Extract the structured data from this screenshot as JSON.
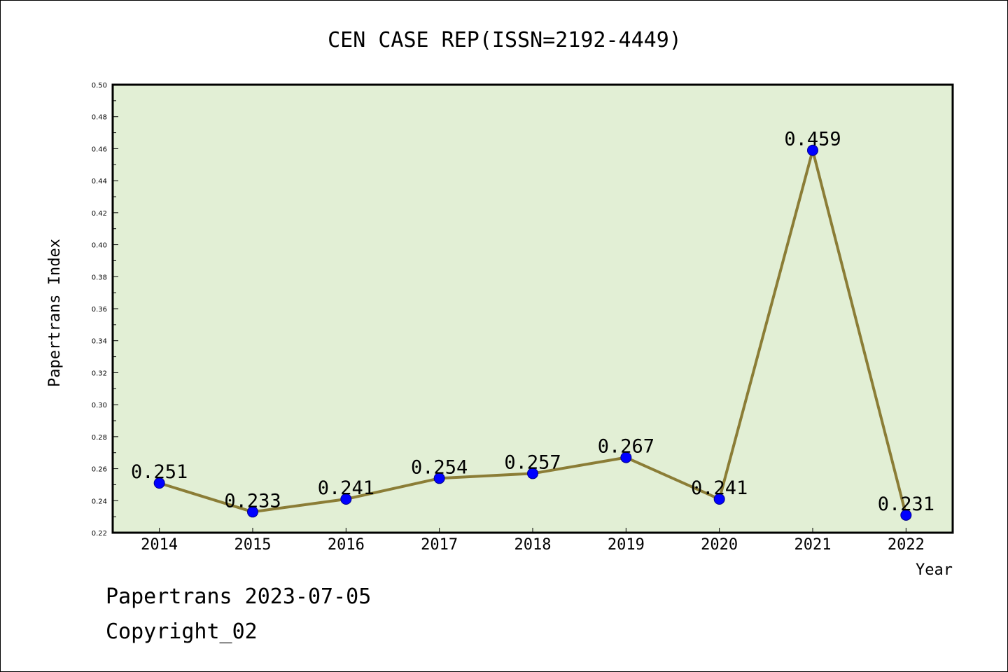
{
  "chart_data": {
    "type": "line",
    "title": "CEN CASE REP(ISSN=2192-4449)",
    "xlabel": "Year",
    "ylabel": "Papertrans Index",
    "categories": [
      "2014",
      "2015",
      "2016",
      "2017",
      "2018",
      "2019",
      "2020",
      "2021",
      "2022"
    ],
    "series": [
      {
        "values": [
          0.251,
          0.233,
          0.241,
          0.254,
          0.257,
          0.267,
          0.241,
          0.459,
          0.231
        ],
        "data_labels": [
          "0.251",
          "0.233",
          "0.241",
          "0.254",
          "0.257",
          "0.267",
          "0.241",
          "0.459",
          "0.231"
        ]
      }
    ],
    "ylim": [
      0.22,
      0.5
    ],
    "yticks": [
      "0.22",
      "0.24",
      "0.26",
      "0.28",
      "0.30",
      "0.32",
      "0.34",
      "0.36",
      "0.38",
      "0.40",
      "0.42",
      "0.44",
      "0.46",
      "0.48",
      "0.50"
    ],
    "grid": false,
    "legend": "none",
    "colors": {
      "plot_background": "#e2efd5",
      "line": "#8b7d36",
      "marker": "#0000ff"
    }
  },
  "footer": {
    "line1": "Papertrans 2023-07-05",
    "line2": "Copyright_02"
  }
}
